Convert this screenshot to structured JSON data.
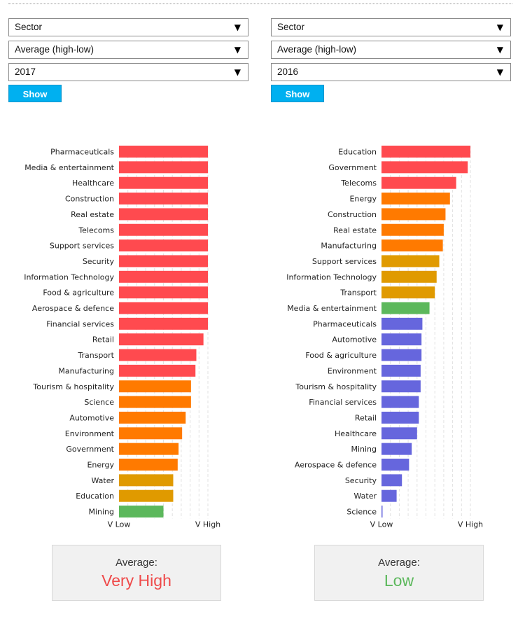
{
  "panels": [
    {
      "selects": [
        {
          "value": "Sector"
        },
        {
          "value": "Average (high-low)"
        },
        {
          "value": "2017"
        }
      ],
      "show_label": "Show",
      "average_label": "Average:",
      "average_value": "Very High",
      "average_color": "#ef4a4a"
    },
    {
      "selects": [
        {
          "value": "Sector"
        },
        {
          "value": "Average (high-low)"
        },
        {
          "value": "2016"
        }
      ],
      "show_label": "Show",
      "average_label": "Average:",
      "average_value": "Low",
      "average_color": "#5cb85c"
    }
  ],
  "colors": {
    "very_high": "#ff4a4f",
    "high": "#ff7a00",
    "medium": "#e09a00",
    "low": "#5cb85c",
    "very_low": "#6666dd"
  },
  "chart_data": [
    {
      "type": "bar",
      "orientation": "horizontal",
      "xlim": [
        0,
        1
      ],
      "xtick_labels": [
        "V Low",
        "V High"
      ],
      "categories": [
        "Pharmaceuticals",
        "Media & entertainment",
        "Healthcare",
        "Construction",
        "Real estate",
        "Telecoms",
        "Support services",
        "Security",
        "Information Technology",
        "Food & agriculture",
        "Aerospace & defence",
        "Financial services",
        "Retail",
        "Transport",
        "Manufacturing",
        "Tourism & hospitality",
        "Science",
        "Automotive",
        "Environment",
        "Government",
        "Energy",
        "Water",
        "Education",
        "Mining"
      ],
      "values": [
        1.0,
        1.0,
        1.0,
        1.0,
        1.0,
        1.0,
        1.0,
        1.0,
        1.0,
        1.0,
        1.0,
        1.0,
        0.95,
        0.87,
        0.86,
        0.81,
        0.81,
        0.75,
        0.71,
        0.67,
        0.66,
        0.61,
        0.61,
        0.5
      ],
      "levels": [
        "very_high",
        "very_high",
        "very_high",
        "very_high",
        "very_high",
        "very_high",
        "very_high",
        "very_high",
        "very_high",
        "very_high",
        "very_high",
        "very_high",
        "very_high",
        "very_high",
        "very_high",
        "high",
        "high",
        "high",
        "high",
        "high",
        "high",
        "medium",
        "medium",
        "low"
      ]
    },
    {
      "type": "bar",
      "orientation": "horizontal",
      "xlim": [
        0,
        1
      ],
      "xtick_labels": [
        "V Low",
        "V High"
      ],
      "categories": [
        "Education",
        "Government",
        "Telecoms",
        "Energy",
        "Construction",
        "Real estate",
        "Manufacturing",
        "Support services",
        "Information Technology",
        "Transport",
        "Media & entertainment",
        "Pharmaceuticals",
        "Automotive",
        "Food & agriculture",
        "Environment",
        "Tourism & hospitality",
        "Financial services",
        "Retail",
        "Healthcare",
        "Mining",
        "Aerospace & defence",
        "Security",
        "Water",
        "Science"
      ],
      "values": [
        1.0,
        0.97,
        0.84,
        0.77,
        0.72,
        0.7,
        0.69,
        0.65,
        0.62,
        0.6,
        0.54,
        0.46,
        0.45,
        0.45,
        0.44,
        0.44,
        0.42,
        0.42,
        0.4,
        0.34,
        0.31,
        0.23,
        0.17,
        0.01
      ],
      "levels": [
        "very_high",
        "very_high",
        "very_high",
        "high",
        "high",
        "high",
        "high",
        "medium",
        "medium",
        "medium",
        "low",
        "very_low",
        "very_low",
        "very_low",
        "very_low",
        "very_low",
        "very_low",
        "very_low",
        "very_low",
        "very_low",
        "very_low",
        "very_low",
        "very_low",
        "very_low"
      ]
    }
  ]
}
